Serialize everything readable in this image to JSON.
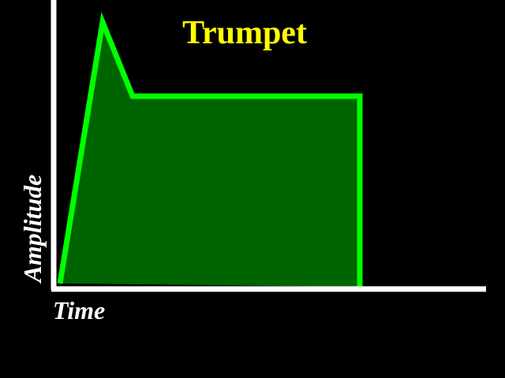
{
  "chart_data": {
    "type": "area",
    "title": "Trumpet",
    "xlabel": "Time",
    "ylabel": "Amplitude",
    "x": [
      0,
      0.135,
      0.23,
      0.95,
      0.95
    ],
    "y": [
      0,
      1.0,
      0.72,
      0.72,
      0
    ],
    "xlim": [
      0,
      1.35
    ],
    "ylim": [
      0,
      1.0
    ],
    "grid": false,
    "legend": "none",
    "colors": {
      "background": "#000000",
      "title": "#ffff00",
      "axes": "#ffffff",
      "line": "#00ff00",
      "fill": "#006400",
      "labels": "#ffffff"
    }
  }
}
